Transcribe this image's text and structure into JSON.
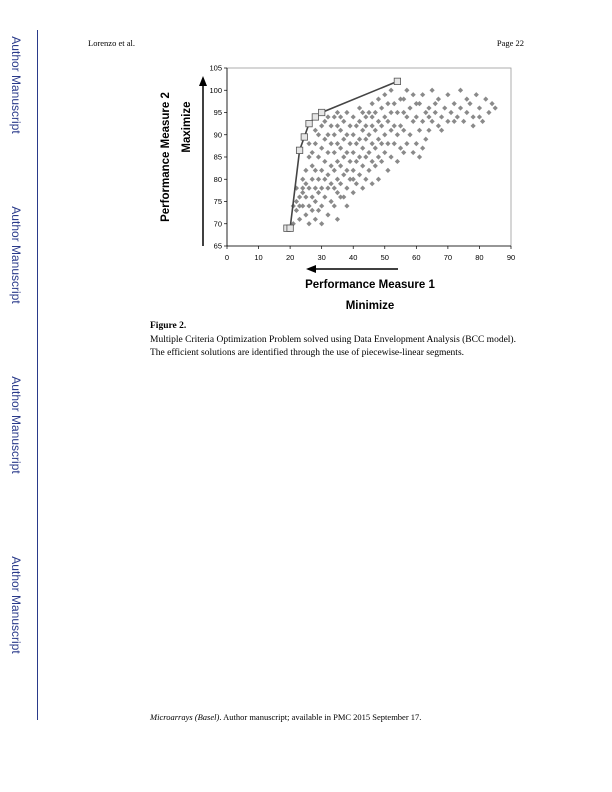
{
  "sidebar": {
    "labels": [
      "Author Manuscript",
      "Author Manuscript",
      "Author Manuscript",
      "Author Manuscript"
    ]
  },
  "header": {
    "author": "Lorenzo et al.",
    "page": "Page 22"
  },
  "figure": {
    "label": "Figure 2.",
    "caption": "Multiple Criteria Optimization Problem solved using Data Envelopment Analysis (BCC model). The efficient solutions are identified through the use of piecewise-linear segments."
  },
  "footer": {
    "journal": "Microarrays (Basel)",
    "rest": ". Author manuscript; available in PMC 2015 September 17."
  },
  "chart_data": {
    "type": "scatter",
    "title": "",
    "xlabel": "Performance Measure 1",
    "xlabel_sub": "Minimize",
    "ylabel": "Performance Measure 2",
    "ylabel_sub": "Maximize",
    "xlim": [
      0,
      90
    ],
    "ylim": [
      65,
      105
    ],
    "xticks": [
      0,
      10,
      20,
      30,
      40,
      50,
      60,
      70,
      80,
      90
    ],
    "yticks": [
      65,
      70,
      75,
      80,
      85,
      90,
      95,
      100,
      105
    ],
    "grid": false,
    "colors": {
      "points": "#8a8a8a",
      "frontier": "#444444",
      "efficient_marker": "#555555"
    },
    "frontier": [
      [
        19,
        69
      ],
      [
        20,
        69
      ],
      [
        23,
        86.5
      ],
      [
        24.5,
        89.5
      ],
      [
        26,
        92.5
      ],
      [
        28,
        94
      ],
      [
        30,
        95
      ],
      [
        54,
        102
      ]
    ],
    "efficient_points": [
      [
        19,
        69
      ],
      [
        20,
        69
      ],
      [
        23,
        86.5
      ],
      [
        24.5,
        89.5
      ],
      [
        26,
        92.5
      ],
      [
        28,
        94
      ],
      [
        30,
        95
      ],
      [
        54,
        102
      ]
    ],
    "points": [
      [
        21,
        74
      ],
      [
        22,
        73
      ],
      [
        22,
        78
      ],
      [
        23,
        74
      ],
      [
        23,
        76
      ],
      [
        23,
        71
      ],
      [
        24,
        78
      ],
      [
        24,
        74
      ],
      [
        24,
        80
      ],
      [
        25,
        72
      ],
      [
        25,
        76
      ],
      [
        25,
        82
      ],
      [
        26,
        74
      ],
      [
        26,
        78
      ],
      [
        26,
        85
      ],
      [
        26,
        88
      ],
      [
        27,
        73
      ],
      [
        27,
        76
      ],
      [
        27,
        80
      ],
      [
        27,
        83
      ],
      [
        27,
        86
      ],
      [
        28,
        75
      ],
      [
        28,
        78
      ],
      [
        28,
        82
      ],
      [
        28,
        88
      ],
      [
        28,
        91
      ],
      [
        29,
        73
      ],
      [
        29,
        77
      ],
      [
        29,
        80
      ],
      [
        29,
        85
      ],
      [
        29,
        90
      ],
      [
        30,
        74
      ],
      [
        30,
        78
      ],
      [
        30,
        82
      ],
      [
        30,
        87
      ],
      [
        30,
        92
      ],
      [
        31,
        76
      ],
      [
        31,
        80
      ],
      [
        31,
        84
      ],
      [
        31,
        89
      ],
      [
        31,
        93
      ],
      [
        32,
        78
      ],
      [
        32,
        81
      ],
      [
        32,
        86
      ],
      [
        32,
        90
      ],
      [
        32,
        94
      ],
      [
        33,
        75
      ],
      [
        33,
        79
      ],
      [
        33,
        83
      ],
      [
        33,
        88
      ],
      [
        33,
        92
      ],
      [
        34,
        78
      ],
      [
        34,
        82
      ],
      [
        34,
        86
      ],
      [
        34,
        90
      ],
      [
        34,
        94
      ],
      [
        35,
        71
      ],
      [
        35,
        77
      ],
      [
        35,
        80
      ],
      [
        35,
        84
      ],
      [
        35,
        88
      ],
      [
        35,
        92
      ],
      [
        35,
        95
      ],
      [
        36,
        79
      ],
      [
        36,
        83
      ],
      [
        36,
        87
      ],
      [
        36,
        91
      ],
      [
        36,
        94
      ],
      [
        37,
        76
      ],
      [
        37,
        81
      ],
      [
        37,
        85
      ],
      [
        37,
        89
      ],
      [
        37,
        93
      ],
      [
        38,
        78
      ],
      [
        38,
        82
      ],
      [
        38,
        86
      ],
      [
        38,
        90
      ],
      [
        38,
        95
      ],
      [
        39,
        80
      ],
      [
        39,
        84
      ],
      [
        39,
        88
      ],
      [
        39,
        92
      ],
      [
        40,
        77
      ],
      [
        40,
        82
      ],
      [
        40,
        86
      ],
      [
        40,
        90
      ],
      [
        40,
        94
      ],
      [
        41,
        79
      ],
      [
        41,
        84
      ],
      [
        41,
        88
      ],
      [
        41,
        92
      ],
      [
        42,
        81
      ],
      [
        42,
        85
      ],
      [
        42,
        89
      ],
      [
        42,
        93
      ],
      [
        42,
        96
      ],
      [
        43,
        78
      ],
      [
        43,
        83
      ],
      [
        43,
        87
      ],
      [
        43,
        91
      ],
      [
        43,
        95
      ],
      [
        44,
        80
      ],
      [
        44,
        85
      ],
      [
        44,
        89
      ],
      [
        44,
        94
      ],
      [
        45,
        82
      ],
      [
        45,
        86
      ],
      [
        45,
        90
      ],
      [
        45,
        95
      ],
      [
        46,
        79
      ],
      [
        46,
        84
      ],
      [
        46,
        88
      ],
      [
        46,
        92
      ],
      [
        46,
        97
      ],
      [
        47,
        83
      ],
      [
        47,
        87
      ],
      [
        47,
        91
      ],
      [
        47,
        95
      ],
      [
        48,
        80
      ],
      [
        48,
        85
      ],
      [
        48,
        89
      ],
      [
        48,
        93
      ],
      [
        48,
        98
      ],
      [
        49,
        84
      ],
      [
        49,
        88
      ],
      [
        49,
        92
      ],
      [
        49,
        96
      ],
      [
        50,
        86
      ],
      [
        50,
        90
      ],
      [
        50,
        94
      ],
      [
        50,
        99
      ],
      [
        51,
        82
      ],
      [
        51,
        88
      ],
      [
        51,
        93
      ],
      [
        51,
        97
      ],
      [
        52,
        85
      ],
      [
        52,
        91
      ],
      [
        52,
        95
      ],
      [
        53,
        88
      ],
      [
        53,
        92
      ],
      [
        53,
        97
      ],
      [
        54,
        84
      ],
      [
        54,
        90
      ],
      [
        54,
        95
      ],
      [
        55,
        87
      ],
      [
        55,
        92
      ],
      [
        55,
        98
      ],
      [
        56,
        86
      ],
      [
        56,
        91
      ],
      [
        56,
        95
      ],
      [
        57,
        88
      ],
      [
        57,
        94
      ],
      [
        57,
        100
      ],
      [
        58,
        90
      ],
      [
        58,
        96
      ],
      [
        59,
        86
      ],
      [
        59,
        93
      ],
      [
        59,
        99
      ],
      [
        60,
        88
      ],
      [
        60,
        94
      ],
      [
        61,
        85
      ],
      [
        61,
        91
      ],
      [
        61,
        97
      ],
      [
        62,
        93
      ],
      [
        62,
        99
      ],
      [
        63,
        89
      ],
      [
        63,
        95
      ],
      [
        64,
        91
      ],
      [
        64,
        96
      ],
      [
        65,
        93
      ],
      [
        65,
        100
      ],
      [
        66,
        95
      ],
      [
        67,
        92
      ],
      [
        67,
        98
      ],
      [
        68,
        94
      ],
      [
        69,
        96
      ],
      [
        70,
        93
      ],
      [
        70,
        99
      ],
      [
        71,
        95
      ],
      [
        72,
        97
      ],
      [
        73,
        94
      ],
      [
        74,
        96
      ],
      [
        74,
        100
      ],
      [
        75,
        93
      ],
      [
        76,
        95
      ],
      [
        77,
        97
      ],
      [
        78,
        94
      ],
      [
        79,
        99
      ],
      [
        80,
        96
      ],
      [
        81,
        93
      ],
      [
        82,
        98
      ],
      [
        83,
        95
      ],
      [
        85,
        96
      ],
      [
        21,
        70
      ],
      [
        22,
        75
      ],
      [
        24,
        77
      ],
      [
        25,
        79
      ],
      [
        26,
        70
      ],
      [
        28,
        71
      ],
      [
        30,
        70
      ],
      [
        32,
        72
      ],
      [
        34,
        74
      ],
      [
        36,
        76
      ],
      [
        38,
        74
      ],
      [
        40,
        80
      ],
      [
        44,
        92
      ],
      [
        46,
        94
      ],
      [
        52,
        100
      ],
      [
        56,
        98
      ],
      [
        60,
        97
      ],
      [
        62,
        87
      ],
      [
        64,
        94
      ],
      [
        66,
        97
      ],
      [
        68,
        91
      ],
      [
        72,
        93
      ],
      [
        76,
        98
      ],
      [
        78,
        92
      ],
      [
        80,
        94
      ],
      [
        84,
        97
      ]
    ]
  }
}
